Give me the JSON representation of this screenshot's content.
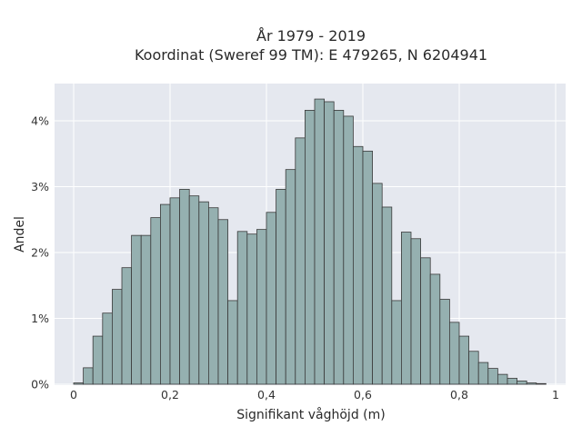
{
  "chart_data": {
    "type": "bar",
    "title_line1": "År 1979 - 2019",
    "title_line2": "Koordinat (Sweref 99 TM): E 479265, N 6204941",
    "xlabel": "Signifikant våghöjd (m)",
    "ylabel": "Andel",
    "xlim": [
      -0.04,
      1.0
    ],
    "ylim": [
      0,
      4.5
    ],
    "x_ticks": [
      0,
      0.2,
      0.4,
      0.6,
      0.8,
      1
    ],
    "x_tick_labels": [
      "0",
      "0,2",
      "0,4",
      "0,6",
      "0,8",
      "1"
    ],
    "y_ticks": [
      0,
      1,
      2,
      3,
      4
    ],
    "y_tick_labels": [
      "0%",
      "1%",
      "2%",
      "3%",
      "4%"
    ],
    "bin_width": 0.02,
    "bin_starts": [
      0.0,
      0.02,
      0.04,
      0.06,
      0.08,
      0.1,
      0.12,
      0.14,
      0.16,
      0.18,
      0.2,
      0.22,
      0.24,
      0.26,
      0.28,
      0.3,
      0.32,
      0.34,
      0.36,
      0.38,
      0.4,
      0.42,
      0.44,
      0.46,
      0.48,
      0.5,
      0.52,
      0.54,
      0.56,
      0.58,
      0.6,
      0.62,
      0.64,
      0.66,
      0.68,
      0.7,
      0.72,
      0.74,
      0.76,
      0.78,
      0.8,
      0.82,
      0.84,
      0.86,
      0.88,
      0.9,
      0.92,
      0.94,
      0.96
    ],
    "values": [
      0.02,
      0.25,
      0.73,
      1.08,
      1.44,
      1.77,
      2.26,
      2.26,
      2.53,
      2.73,
      2.83,
      2.96,
      2.86,
      2.77,
      2.68,
      2.5,
      1.27,
      2.32,
      2.28,
      2.35,
      2.61,
      2.96,
      3.26,
      3.74,
      4.16,
      4.33,
      4.29,
      4.16,
      4.07,
      3.61,
      3.54,
      3.05,
      2.69,
      1.27,
      2.31,
      2.21,
      1.92,
      1.67,
      1.29,
      0.94,
      0.73,
      0.5,
      0.33,
      0.24,
      0.15,
      0.09,
      0.05,
      0.02,
      0.01
    ],
    "grid": true,
    "colors": {
      "bar_fill": "#95b0b0",
      "bar_stroke": "#3a3a3a",
      "plot_bg": "#e5e8ef",
      "grid": "#ffffff"
    }
  }
}
